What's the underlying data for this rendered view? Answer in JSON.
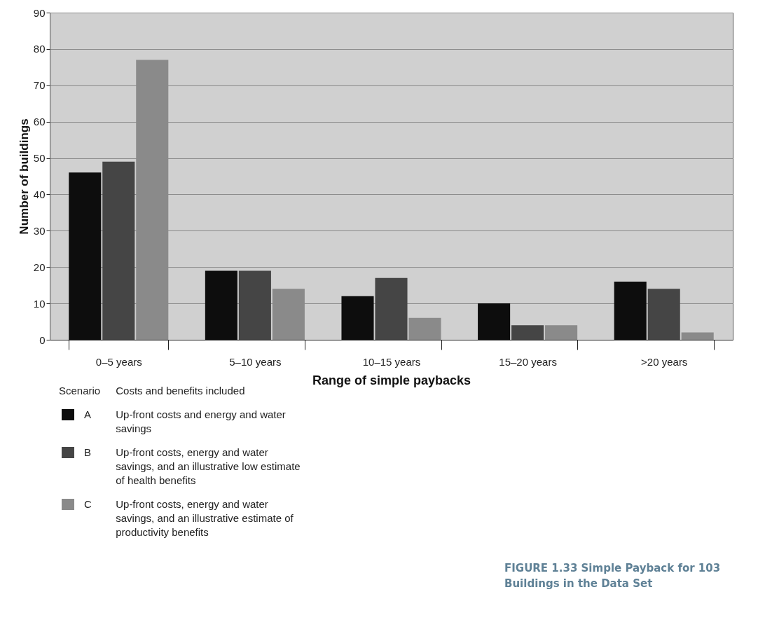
{
  "chart_data": {
    "type": "bar",
    "title": "FIGURE 1.33 Simple Payback for 103 Buildings in the Data Set",
    "xlabel": "Range of simple paybacks",
    "ylabel": "Number of buildings",
    "categories": [
      "0–5 years",
      "5–10 years",
      "10–15 years",
      "15–20 years",
      ">20 years"
    ],
    "series": [
      {
        "name": "A",
        "color": "#0d0d0d",
        "values": [
          46,
          19,
          12,
          10,
          16
        ]
      },
      {
        "name": "B",
        "color": "#454545",
        "values": [
          49,
          19,
          17,
          4,
          14
        ]
      },
      {
        "name": "C",
        "color": "#8a8a8a",
        "values": [
          77,
          14,
          6,
          4,
          2
        ]
      }
    ],
    "ylim": [
      0,
      90
    ],
    "yticks": [
      0,
      10,
      20,
      30,
      40,
      50,
      60,
      70,
      80,
      90
    ],
    "grid": "y",
    "legend": "bottom left",
    "legend_title": "Scenario",
    "annotations": [
      "Costs and benefits included",
      "Up-front costs and energy and water savings",
      "Up-front costs, energy and water savings, and an illustrative low estimate of health benefits",
      "Up-front costs, energy and water savings, and an illustrative estimate of productivity benefits"
    ]
  }
}
